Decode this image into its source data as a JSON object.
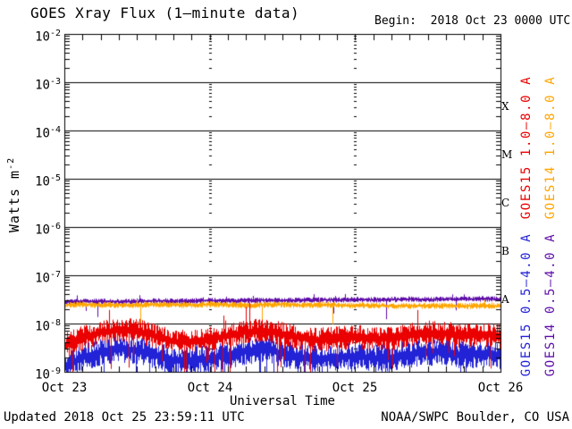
{
  "header": {
    "begin": "Begin:  2018 Oct 23 0000 UTC"
  },
  "footer": {
    "updated": "Updated 2018 Oct 25 23:59:11 UTC",
    "source": "NOAA/SWPC Boulder, CO USA"
  },
  "chart_data": {
    "type": "line",
    "title": "GOES Xray Flux (1–minute data)",
    "xlabel": "Universal Time",
    "ylabel": "Watts m^-2",
    "ylabel_main": "Watts m",
    "ylabel_exp": "-2",
    "y_axis": {
      "scale": "log",
      "exp_top": -2,
      "exp_bottom": -9,
      "tick_base": "10",
      "tick_exponents": [
        "-2",
        "-3",
        "-4",
        "-5",
        "-6",
        "-7",
        "-8",
        "-9"
      ]
    },
    "x_axis": {
      "unit": "hours from begin",
      "range_hours": [
        0,
        72
      ],
      "day_labels": [
        "Oct 23",
        "Oct 24",
        "Oct 25",
        "Oct 26"
      ],
      "minor_tick_hours": 3
    },
    "flux_classes": [
      "X",
      "M",
      "C",
      "B",
      "A"
    ],
    "grid": {
      "horizontal_decades": true,
      "vertical_dotted_days": true
    },
    "legend_position": "right-vertical",
    "series": [
      {
        "name": "GOES15 1.0–8.0 A",
        "color": "#ea0000",
        "noise_dex": 0.2,
        "hours": [
          0,
          3,
          6,
          9,
          12,
          15,
          18,
          21,
          24,
          27,
          30,
          33,
          36,
          39,
          42,
          45,
          48,
          51,
          54,
          57,
          60,
          63,
          66,
          69,
          72
        ],
        "values": [
          3.5e-09,
          5e-09,
          6.5e-09,
          7.5e-09,
          7e-09,
          5.5e-09,
          4.2e-09,
          4.3e-09,
          4.8e-09,
          5.5e-09,
          6.8e-09,
          7.2e-09,
          6e-09,
          5e-09,
          4.5e-09,
          5e-09,
          5.2e-09,
          4.8e-09,
          5e-09,
          5.8e-09,
          6.5e-09,
          6.2e-09,
          5.5e-09,
          6e-09,
          5.5e-09
        ]
      },
      {
        "name": "GOES14 1.0–8.0 A",
        "color": "#ffa500",
        "noise_dex": 0.05,
        "hours": [
          0,
          3,
          6,
          9,
          12,
          15,
          18,
          21,
          24,
          27,
          30,
          33,
          36,
          39,
          42,
          45,
          48,
          51,
          54,
          57,
          60,
          63,
          66,
          69,
          72
        ],
        "values": [
          2.4e-08,
          2.5e-08,
          2.4e-08,
          2.45e-08,
          2.4e-08,
          2.5e-08,
          2.45e-08,
          2.4e-08,
          2.5e-08,
          2.45e-08,
          2.4e-08,
          2.45e-08,
          2.5e-08,
          2.4e-08,
          2.45e-08,
          2.4e-08,
          2.35e-08,
          2.4e-08,
          2.3e-08,
          2.35e-08,
          2.3e-08,
          2.35e-08,
          2.3e-08,
          2.35e-08,
          2.3e-08
        ]
      },
      {
        "name": "GOES15 0.5–4.0 A",
        "color": "#2222d6",
        "noise_dex": 0.22,
        "hours": [
          0,
          3,
          6,
          9,
          12,
          15,
          18,
          21,
          24,
          27,
          30,
          33,
          36,
          39,
          42,
          45,
          48,
          51,
          54,
          57,
          60,
          63,
          66,
          69,
          72
        ],
        "values": [
          1.3e-09,
          2e-09,
          2.6e-09,
          3e-09,
          2.8e-09,
          2.2e-09,
          1.7e-09,
          1.7e-09,
          1.9e-09,
          2.2e-09,
          2.7e-09,
          3e-09,
          2.4e-09,
          2e-09,
          1.8e-09,
          2e-09,
          2.1e-09,
          1.9e-09,
          2e-09,
          2.3e-09,
          2.6e-09,
          2.5e-09,
          2.2e-09,
          2.4e-09,
          2.2e-09
        ]
      },
      {
        "name": "GOES14 0.5–4.0 A",
        "color": "#5e0da8",
        "noise_dex": 0.045,
        "hours": [
          0,
          3,
          6,
          9,
          12,
          15,
          18,
          21,
          24,
          27,
          30,
          33,
          36,
          39,
          42,
          45,
          48,
          51,
          54,
          57,
          60,
          63,
          66,
          69,
          72
        ],
        "values": [
          2.8e-08,
          2.85e-08,
          2.9e-08,
          2.85e-08,
          2.9e-08,
          2.95e-08,
          2.9e-08,
          2.95e-08,
          3e-08,
          2.95e-08,
          3e-08,
          3.05e-08,
          3e-08,
          3.05e-08,
          3.1e-08,
          3.1e-08,
          3.15e-08,
          3.1e-08,
          3.15e-08,
          3.2e-08,
          3.15e-08,
          3.2e-08,
          3.2e-08,
          3.25e-08,
          3.2e-08
        ]
      }
    ],
    "draw_order": [
      3,
      1,
      2,
      0
    ]
  }
}
